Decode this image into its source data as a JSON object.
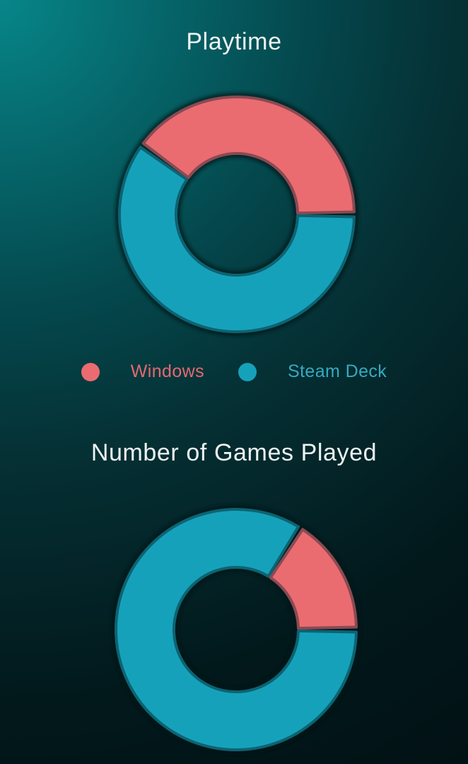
{
  "page": {
    "kind": "dual-donut-infographic",
    "background_colors": {
      "top_left": "#078689",
      "mid": "#04494e",
      "bottom": "#021013"
    },
    "title_text_color": "#edf3f3"
  },
  "legend": {
    "items": [
      {
        "label": "Windows",
        "color": "#ea6c70",
        "text_color": "#e4696f"
      },
      {
        "label": "Steam Deck",
        "color": "#16a1bb",
        "text_color": "#35aac2"
      }
    ]
  },
  "chart_data": [
    {
      "type": "pie",
      "variant": "donut",
      "title": "Playtime",
      "labels": [
        "Windows",
        "Steam Deck"
      ],
      "values": [
        40,
        60
      ],
      "unit": "percent (estimated from arc angles)",
      "colors": [
        "#ea6c70",
        "#16a1bb"
      ],
      "edge_colors": [
        "#8a4a53",
        "#0d6372"
      ],
      "start_angle_deg": 0,
      "direction": "counterclockwise",
      "legend_position": "below",
      "data_labels": false
    },
    {
      "type": "pie",
      "variant": "donut",
      "title": "Number of Games Played",
      "labels": [
        "Windows",
        "Steam Deck"
      ],
      "values": [
        16,
        84
      ],
      "unit": "percent (estimated from arc angles)",
      "colors": [
        "#ea6c70",
        "#16a1bb"
      ],
      "edge_colors": [
        "#8a4a53",
        "#0d6372"
      ],
      "start_angle_deg": 0,
      "direction": "counterclockwise",
      "legend_position": "shared-with-first-chart",
      "data_labels": false
    }
  ]
}
